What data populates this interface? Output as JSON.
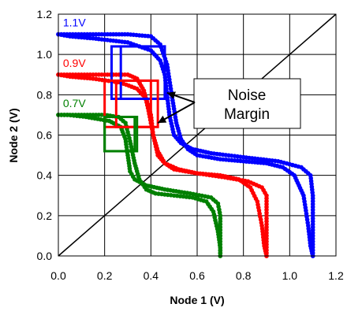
{
  "chart_data": {
    "type": "scatter",
    "title": "",
    "xlabel": "Node 1 (V)",
    "ylabel": "Node 2 (V)",
    "xlim": [
      0,
      1.2
    ],
    "ylim": [
      0,
      1.2
    ],
    "x_ticks": [
      "0.0",
      "0.2",
      "0.4",
      "0.6",
      "0.8",
      "1.0",
      "1.2"
    ],
    "y_ticks": [
      "0.0",
      "0.2",
      "0.4",
      "0.6",
      "0.8",
      "1.0",
      "1.2"
    ],
    "grid": true,
    "reference_line": {
      "label": "",
      "from": [
        0,
        0
      ],
      "to": [
        1.2,
        1.2
      ],
      "color": "#000000"
    },
    "annotation": {
      "text_line1": "Noise",
      "text_line2": "Margin",
      "arrow_targets": [
        [
          0.47,
          0.81
        ],
        [
          0.43,
          0.66
        ]
      ]
    },
    "series": [
      {
        "name": "1.1V",
        "color": "#0000ff",
        "vtc": [
          [
            0.0,
            1.1
          ],
          [
            0.1,
            1.1
          ],
          [
            0.2,
            1.1
          ],
          [
            0.3,
            1.1
          ],
          [
            0.4,
            1.09
          ],
          [
            0.44,
            1.05
          ],
          [
            0.47,
            0.95
          ],
          [
            0.49,
            0.8
          ],
          [
            0.51,
            0.66
          ],
          [
            0.53,
            0.58
          ],
          [
            0.56,
            0.53
          ],
          [
            0.6,
            0.5
          ],
          [
            0.7,
            0.48
          ],
          [
            0.8,
            0.47
          ],
          [
            0.9,
            0.46
          ],
          [
            0.97,
            0.44
          ],
          [
            1.02,
            0.4
          ],
          [
            1.06,
            0.3
          ],
          [
            1.08,
            0.15
          ],
          [
            1.09,
            0.05
          ],
          [
            1.1,
            0.0
          ]
        ],
        "nm_box": {
          "x": [
            0.27,
            0.46
          ],
          "y": [
            0.78,
            1.04
          ]
        },
        "nm_box_swapped": {
          "x": [
            0.23,
            0.46
          ],
          "y": [
            0.78,
            1.04
          ]
        }
      },
      {
        "name": "0.9V",
        "color": "#ff0000",
        "vtc": [
          [
            0.0,
            0.9
          ],
          [
            0.1,
            0.9
          ],
          [
            0.2,
            0.9
          ],
          [
            0.3,
            0.9
          ],
          [
            0.34,
            0.88
          ],
          [
            0.37,
            0.82
          ],
          [
            0.39,
            0.72
          ],
          [
            0.41,
            0.6
          ],
          [
            0.43,
            0.52
          ],
          [
            0.46,
            0.46
          ],
          [
            0.5,
            0.43
          ],
          [
            0.6,
            0.41
          ],
          [
            0.7,
            0.4
          ],
          [
            0.78,
            0.38
          ],
          [
            0.83,
            0.34
          ],
          [
            0.86,
            0.27
          ],
          [
            0.88,
            0.15
          ],
          [
            0.89,
            0.05
          ],
          [
            0.9,
            0.0
          ]
        ],
        "nm_box": {
          "x": [
            0.25,
            0.43
          ],
          "y": [
            0.64,
            0.87
          ]
        },
        "nm_box_swapped": {
          "x": [
            0.2,
            0.4
          ],
          "y": [
            0.64,
            0.87
          ]
        }
      },
      {
        "name": "0.7V",
        "color": "#008000",
        "vtc": [
          [
            0.0,
            0.7
          ],
          [
            0.1,
            0.7
          ],
          [
            0.2,
            0.7
          ],
          [
            0.26,
            0.69
          ],
          [
            0.29,
            0.66
          ],
          [
            0.31,
            0.57
          ],
          [
            0.33,
            0.46
          ],
          [
            0.35,
            0.38
          ],
          [
            0.38,
            0.33
          ],
          [
            0.42,
            0.31
          ],
          [
            0.5,
            0.3
          ],
          [
            0.58,
            0.29
          ],
          [
            0.64,
            0.27
          ],
          [
            0.67,
            0.22
          ],
          [
            0.69,
            0.12
          ],
          [
            0.7,
            0.04
          ],
          [
            0.7,
            0.0
          ]
        ],
        "nm_box": {
          "x": [
            0.2,
            0.34
          ],
          "y": [
            0.52,
            0.69
          ]
        },
        "nm_box_swapped": {
          "x": [
            0.2,
            0.33
          ],
          "y": [
            0.52,
            0.69
          ]
        }
      }
    ]
  }
}
